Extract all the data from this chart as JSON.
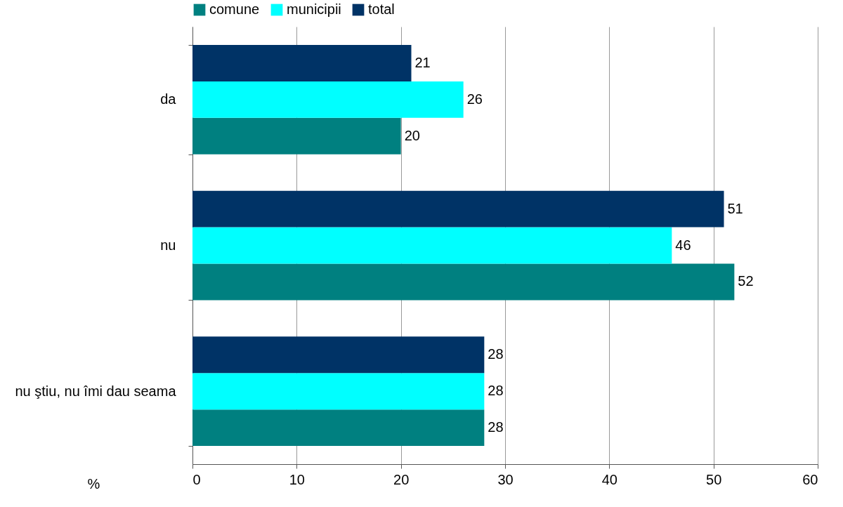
{
  "chart_data": {
    "type": "bar",
    "orientation": "horizontal",
    "categories": [
      "da",
      "nu",
      "nu ştiu, nu îmi dau seama"
    ],
    "series": [
      {
        "name": "comune",
        "color": "#008080",
        "values": [
          20,
          52,
          28
        ]
      },
      {
        "name": "municipii",
        "color": "#00ffff",
        "values": [
          26,
          46,
          28
        ]
      },
      {
        "name": "total",
        "color": "#003366",
        "values": [
          21,
          51,
          28
        ]
      }
    ],
    "xlabel": "%",
    "xlim": [
      0,
      60
    ],
    "xticks": [
      0,
      10,
      20,
      30,
      40,
      50,
      60
    ],
    "grid": "x",
    "legend": "top",
    "data_labels": true
  }
}
